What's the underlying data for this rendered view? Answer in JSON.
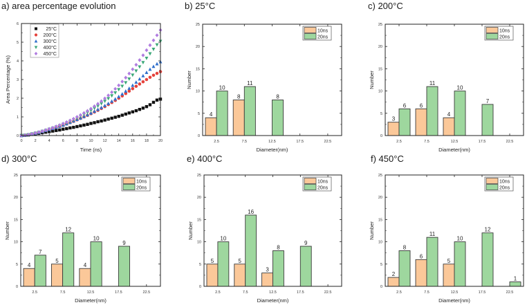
{
  "figure": {
    "colors": {
      "bar_10ns": "#FBC899",
      "bar_20ns": "#9ED79E",
      "bar_stroke": "#3a3a3a",
      "axis": "#222222"
    }
  },
  "chart_data": [
    {
      "id": "a",
      "type": "scatter",
      "title": "a) area percentage evolution",
      "xlabel": "Time (ns)",
      "ylabel": "Area Percentage (%)",
      "xlim": [
        0,
        20
      ],
      "ylim": [
        0,
        6
      ],
      "xticks": [
        0,
        2,
        4,
        6,
        8,
        10,
        12,
        14,
        16,
        18,
        20
      ],
      "yticks": [
        0,
        1,
        2,
        3,
        4,
        5,
        6
      ],
      "grid": false,
      "legend_position": "top-left",
      "x": [
        0,
        0.5,
        1,
        1.5,
        2,
        2.5,
        3,
        3.5,
        4,
        4.5,
        5,
        5.5,
        6,
        6.5,
        7,
        7.5,
        8,
        8.5,
        9,
        9.5,
        10,
        10.5,
        11,
        11.5,
        12,
        12.5,
        13,
        13.5,
        14,
        14.5,
        15,
        15.5,
        16,
        16.5,
        17,
        17.5,
        18,
        18.5,
        19,
        19.5,
        20
      ],
      "series": [
        {
          "name": "25°C",
          "marker": "square",
          "color": "#111111",
          "values": [
            0,
            0.01,
            0.03,
            0.06,
            0.09,
            0.12,
            0.15,
            0.18,
            0.21,
            0.24,
            0.27,
            0.3,
            0.34,
            0.37,
            0.41,
            0.44,
            0.48,
            0.52,
            0.56,
            0.6,
            0.65,
            0.69,
            0.74,
            0.78,
            0.83,
            0.88,
            0.93,
            0.98,
            1.03,
            1.09,
            1.15,
            1.21,
            1.27,
            1.33,
            1.4,
            1.47,
            1.55,
            1.65,
            1.78,
            1.9,
            1.95
          ]
        },
        {
          "name": "200°C",
          "marker": "circle",
          "color": "#E5413B",
          "values": [
            0,
            0.02,
            0.05,
            0.09,
            0.13,
            0.17,
            0.22,
            0.27,
            0.32,
            0.37,
            0.43,
            0.49,
            0.55,
            0.62,
            0.69,
            0.76,
            0.84,
            0.92,
            1.0,
            1.08,
            1.17,
            1.26,
            1.35,
            1.45,
            1.55,
            1.66,
            1.77,
            1.88,
            2.0,
            2.12,
            2.25,
            2.38,
            2.51,
            2.64,
            2.76,
            2.88,
            3.0,
            3.12,
            3.23,
            3.33,
            3.42
          ]
        },
        {
          "name": "300°C",
          "marker": "triangle-up",
          "color": "#2F6FCC",
          "values": [
            0,
            0.02,
            0.05,
            0.09,
            0.13,
            0.17,
            0.22,
            0.27,
            0.32,
            0.38,
            0.44,
            0.5,
            0.56,
            0.63,
            0.7,
            0.78,
            0.86,
            0.94,
            1.02,
            1.11,
            1.2,
            1.3,
            1.4,
            1.5,
            1.61,
            1.72,
            1.84,
            1.96,
            2.09,
            2.23,
            2.38,
            2.53,
            2.69,
            2.86,
            3.03,
            3.2,
            3.38,
            3.55,
            3.7,
            3.84,
            3.95
          ]
        },
        {
          "name": "400°C",
          "marker": "triangle-down",
          "color": "#3BA878",
          "values": [
            0,
            0.02,
            0.05,
            0.09,
            0.13,
            0.18,
            0.23,
            0.28,
            0.34,
            0.4,
            0.46,
            0.53,
            0.6,
            0.67,
            0.75,
            0.84,
            0.93,
            1.03,
            1.13,
            1.23,
            1.34,
            1.46,
            1.58,
            1.71,
            1.84,
            1.98,
            2.13,
            2.29,
            2.46,
            2.64,
            2.83,
            3.03,
            3.24,
            3.46,
            3.68,
            3.91,
            4.14,
            4.38,
            4.62,
            4.86,
            5.05
          ]
        },
        {
          "name": "450°C",
          "marker": "diamond",
          "color": "#B07CE0",
          "values": [
            0,
            0.02,
            0.05,
            0.09,
            0.14,
            0.19,
            0.24,
            0.3,
            0.36,
            0.42,
            0.49,
            0.56,
            0.64,
            0.72,
            0.81,
            0.9,
            1.0,
            1.1,
            1.21,
            1.32,
            1.44,
            1.57,
            1.7,
            1.84,
            1.99,
            2.15,
            2.32,
            2.5,
            2.69,
            2.89,
            3.1,
            3.32,
            3.55,
            3.79,
            4.04,
            4.3,
            4.57,
            4.84,
            5.1,
            5.37,
            5.65
          ]
        }
      ]
    },
    {
      "id": "b",
      "type": "bar",
      "title": "b) 25°C",
      "xlabel": "Diameter(nm)",
      "ylabel": "Number",
      "categories": [
        "2.5",
        "7.5",
        "12.5",
        "17.5",
        "22.5"
      ],
      "ylim": [
        0,
        25
      ],
      "yticks": [
        0,
        5,
        10,
        15,
        20,
        25
      ],
      "legend_position": "top-right",
      "series": [
        {
          "name": "10ns",
          "values": [
            4,
            8,
            0,
            0,
            0
          ]
        },
        {
          "name": "20ns",
          "values": [
            10,
            11,
            8,
            0,
            0
          ]
        }
      ]
    },
    {
      "id": "c",
      "type": "bar",
      "title": "c) 200°C",
      "xlabel": "Diameter(nm)",
      "ylabel": "Number",
      "categories": [
        "2.5",
        "7.5",
        "12.5",
        "17.5",
        "22.5"
      ],
      "ylim": [
        0,
        25
      ],
      "yticks": [
        0,
        5,
        10,
        15,
        20,
        25
      ],
      "legend_position": "top-right",
      "series": [
        {
          "name": "10ns",
          "values": [
            3,
            6,
            4,
            0,
            0
          ]
        },
        {
          "name": "20ns",
          "values": [
            6,
            11,
            10,
            7,
            0
          ]
        }
      ]
    },
    {
      "id": "d",
      "type": "bar",
      "title": "d) 300°C",
      "xlabel": "Diameter(nm)",
      "ylabel": "Number",
      "categories": [
        "2.5",
        "7.5",
        "12.5",
        "17.5",
        "22.5"
      ],
      "ylim": [
        0,
        25
      ],
      "yticks": [
        0,
        5,
        10,
        15,
        20,
        25
      ],
      "legend_position": "top-right",
      "series": [
        {
          "name": "10ns",
          "values": [
            4,
            5,
            4,
            0,
            0
          ]
        },
        {
          "name": "20ns",
          "values": [
            7,
            12,
            10,
            9,
            0
          ]
        }
      ]
    },
    {
      "id": "e",
      "type": "bar",
      "title": "e) 400°C",
      "xlabel": "Diameter(nm)",
      "ylabel": "Number",
      "categories": [
        "2.5",
        "7.5",
        "12.5",
        "17.5",
        "22.5"
      ],
      "ylim": [
        0,
        25
      ],
      "yticks": [
        0,
        5,
        10,
        15,
        20,
        25
      ],
      "legend_position": "top-right",
      "series": [
        {
          "name": "10ns",
          "values": [
            5,
            5,
            3,
            0,
            0
          ]
        },
        {
          "name": "20ns",
          "values": [
            10,
            16,
            8,
            9,
            0
          ]
        }
      ]
    },
    {
      "id": "f",
      "type": "bar",
      "title": "f) 450°C",
      "xlabel": "Diameter(nm)",
      "ylabel": "Number",
      "categories": [
        "2.5",
        "7.5",
        "12.5",
        "17.5",
        "22.5"
      ],
      "ylim": [
        0,
        25
      ],
      "yticks": [
        0,
        5,
        10,
        15,
        20,
        25
      ],
      "legend_position": "top-right",
      "series": [
        {
          "name": "10ns",
          "values": [
            2,
            6,
            5,
            0,
            0
          ]
        },
        {
          "name": "20ns",
          "values": [
            8,
            11,
            10,
            12,
            1
          ]
        }
      ]
    }
  ]
}
